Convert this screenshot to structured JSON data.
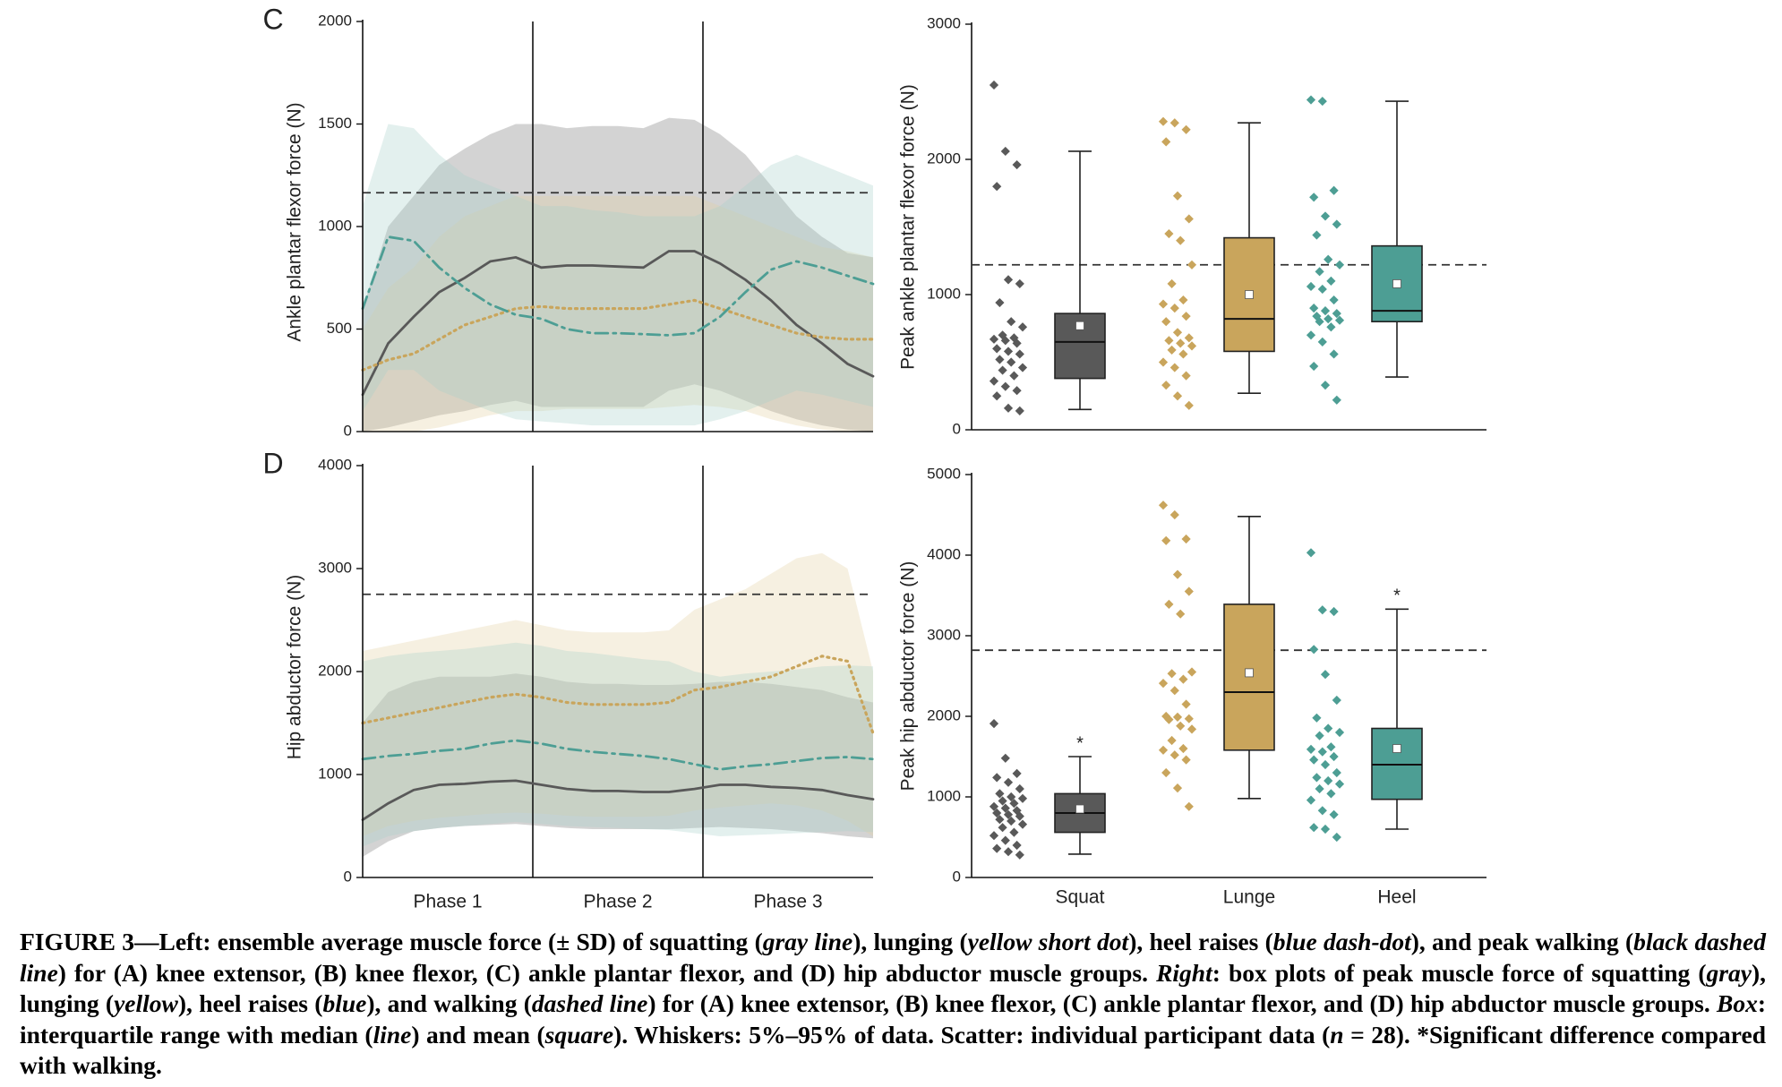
{
  "colors": {
    "squat": "#595959",
    "lunge": "#c9a55c",
    "heel": "#4d9e94",
    "walk": "#333333"
  },
  "panels": [
    {
      "letter": "C",
      "ylabel": "Ankle plantar flexor force (N)",
      "yticks": [
        "0",
        "500",
        "1000",
        "1500",
        "2000"
      ],
      "walk_peak": 1165
    },
    {
      "letter": "D",
      "ylabel": "Hip abductor force (N)",
      "yticks": [
        "0",
        "1000",
        "2000",
        "3000",
        "4000"
      ],
      "walk_peak": 2750
    }
  ],
  "phase_labels": [
    "Phase 1",
    "Phase 2",
    "Phase 3"
  ],
  "box_labels": [
    "Squat",
    "Lunge",
    "Heel"
  ],
  "chart_data": [
    {
      "type": "line",
      "title": "C",
      "ylabel": "Ankle plantar flexor force (N)",
      "ylim": [
        0,
        2000
      ],
      "x": [
        0,
        0.05,
        0.1,
        0.15,
        0.2,
        0.25,
        0.3,
        0.35,
        0.4,
        0.45,
        0.5,
        0.55,
        0.6,
        0.65,
        0.7,
        0.75,
        0.8,
        0.85,
        0.9,
        0.95,
        1.0
      ],
      "xlabel": "Phase 1 | Phase 2 | Phase 3",
      "reference_line": {
        "name": "Peak walking",
        "value": 1165
      },
      "series": [
        {
          "name": "Squat",
          "values": [
            180,
            430,
            560,
            680,
            750,
            830,
            850,
            800,
            810,
            810,
            805,
            800,
            880,
            880,
            820,
            740,
            640,
            520,
            430,
            330,
            270
          ],
          "sd_upper": [
            600,
            1000,
            1150,
            1300,
            1380,
            1450,
            1500,
            1500,
            1480,
            1490,
            1490,
            1480,
            1530,
            1520,
            1450,
            1350,
            1200,
            1050,
            950,
            870,
            850
          ],
          "sd_lower": [
            0,
            20,
            50,
            80,
            100,
            130,
            150,
            120,
            120,
            120,
            120,
            120,
            200,
            230,
            200,
            150,
            100,
            60,
            30,
            10,
            0
          ]
        },
        {
          "name": "Lunge",
          "values": [
            300,
            350,
            380,
            450,
            520,
            560,
            600,
            610,
            600,
            600,
            600,
            600,
            620,
            640,
            600,
            560,
            520,
            480,
            460,
            450,
            450
          ],
          "sd_upper": [
            500,
            700,
            800,
            950,
            1050,
            1100,
            1150,
            1150,
            1150,
            1150,
            1150,
            1150,
            1150,
            1150,
            1100,
            1050,
            1000,
            950,
            900,
            880,
            850
          ],
          "sd_lower": [
            0,
            0,
            0,
            20,
            50,
            80,
            100,
            100,
            110,
            110,
            110,
            110,
            120,
            130,
            120,
            100,
            60,
            30,
            10,
            0,
            0
          ]
        },
        {
          "name": "Heel",
          "values": [
            600,
            950,
            930,
            800,
            700,
            620,
            570,
            550,
            500,
            480,
            480,
            475,
            470,
            480,
            560,
            680,
            790,
            830,
            800,
            760,
            720
          ],
          "sd_upper": [
            1100,
            1500,
            1480,
            1350,
            1250,
            1200,
            1150,
            1100,
            1100,
            1080,
            1070,
            1050,
            1050,
            1050,
            1100,
            1200,
            1300,
            1350,
            1300,
            1250,
            1200
          ],
          "sd_lower": [
            100,
            300,
            300,
            200,
            150,
            100,
            60,
            50,
            40,
            30,
            30,
            30,
            30,
            30,
            60,
            100,
            150,
            200,
            180,
            150,
            120
          ]
        }
      ]
    },
    {
      "type": "line",
      "title": "D",
      "ylabel": "Hip abductor force (N)",
      "ylim": [
        0,
        4000
      ],
      "x": [
        0,
        0.05,
        0.1,
        0.15,
        0.2,
        0.25,
        0.3,
        0.35,
        0.4,
        0.45,
        0.5,
        0.55,
        0.6,
        0.65,
        0.7,
        0.75,
        0.8,
        0.85,
        0.9,
        0.95,
        1.0
      ],
      "xlabel": "Phase 1 | Phase 2 | Phase 3",
      "reference_line": {
        "name": "Peak walking",
        "value": 2750
      },
      "series": [
        {
          "name": "Squat",
          "values": [
            560,
            720,
            850,
            900,
            910,
            930,
            940,
            900,
            860,
            840,
            840,
            830,
            830,
            860,
            900,
            900,
            880,
            870,
            850,
            800,
            760
          ],
          "sd_upper": [
            1500,
            1800,
            1900,
            1950,
            1950,
            1950,
            1980,
            1950,
            1900,
            1880,
            1880,
            1870,
            1870,
            1880,
            1900,
            1900,
            1880,
            1850,
            1820,
            1750,
            1700
          ],
          "sd_lower": [
            200,
            350,
            450,
            480,
            500,
            510,
            520,
            500,
            480,
            470,
            470,
            470,
            470,
            480,
            490,
            480,
            470,
            450,
            430,
            400,
            380
          ]
        },
        {
          "name": "Lunge",
          "values": [
            1500,
            1550,
            1600,
            1650,
            1700,
            1750,
            1780,
            1750,
            1700,
            1680,
            1680,
            1680,
            1700,
            1820,
            1850,
            1900,
            1950,
            2050,
            2150,
            2100,
            1400
          ],
          "sd_upper": [
            2200,
            2250,
            2300,
            2350,
            2400,
            2450,
            2500,
            2450,
            2400,
            2380,
            2380,
            2380,
            2400,
            2600,
            2700,
            2800,
            2950,
            3100,
            3150,
            3000,
            2000
          ],
          "sd_lower": [
            400,
            500,
            550,
            580,
            600,
            620,
            630,
            620,
            600,
            590,
            590,
            590,
            600,
            650,
            680,
            700,
            720,
            700,
            650,
            550,
            400
          ]
        },
        {
          "name": "Heel",
          "values": [
            1150,
            1180,
            1200,
            1230,
            1250,
            1300,
            1330,
            1300,
            1250,
            1220,
            1200,
            1180,
            1150,
            1100,
            1050,
            1080,
            1100,
            1130,
            1160,
            1170,
            1150
          ],
          "sd_upper": [
            2100,
            2150,
            2180,
            2200,
            2220,
            2250,
            2280,
            2250,
            2200,
            2180,
            2150,
            2120,
            2100,
            2000,
            1950,
            1980,
            2000,
            2020,
            2050,
            2060,
            2050
          ],
          "sd_lower": [
            300,
            400,
            450,
            480,
            500,
            520,
            540,
            520,
            500,
            490,
            480,
            470,
            460,
            430,
            400,
            410,
            420,
            430,
            440,
            450,
            440
          ]
        }
      ]
    },
    {
      "type": "box",
      "ylabel": "Peak ankle plantar flexor force (N)",
      "ylim": [
        0,
        3000
      ],
      "yticks": [
        "0",
        "1000",
        "2000",
        "3000"
      ],
      "categories": [
        "Squat",
        "Lunge",
        "Heel"
      ],
      "reference_line": {
        "name": "Peak walking",
        "value": 1220
      },
      "boxes": [
        {
          "name": "Squat",
          "whisker_low": 150,
          "q1": 380,
          "median": 650,
          "q3": 860,
          "whisker_high": 2060,
          "mean": 770,
          "significant": false,
          "points": [
            2550,
            2060,
            1960,
            1800,
            1110,
            1080,
            940,
            800,
            760,
            700,
            680,
            670,
            660,
            640,
            600,
            580,
            560,
            520,
            500,
            460,
            440,
            400,
            360,
            320,
            290,
            250,
            160,
            140
          ]
        },
        {
          "name": "Lunge",
          "whisker_low": 270,
          "q1": 580,
          "median": 820,
          "q3": 1420,
          "whisker_high": 2270,
          "mean": 1000,
          "significant": false,
          "points": [
            2280,
            2270,
            2220,
            2130,
            1730,
            1560,
            1450,
            1400,
            1220,
            1080,
            960,
            930,
            900,
            840,
            800,
            720,
            680,
            660,
            640,
            620,
            590,
            560,
            500,
            460,
            400,
            330,
            250,
            180
          ]
        },
        {
          "name": "Heel",
          "whisker_low": 390,
          "q1": 800,
          "median": 880,
          "q3": 1360,
          "whisker_high": 2430,
          "mean": 1080,
          "significant": false,
          "points": [
            2440,
            2430,
            1770,
            1720,
            1580,
            1520,
            1440,
            1260,
            1220,
            1170,
            1100,
            1060,
            1040,
            960,
            900,
            880,
            860,
            840,
            820,
            810,
            800,
            760,
            700,
            650,
            560,
            470,
            330,
            220
          ]
        }
      ]
    },
    {
      "type": "box",
      "ylabel": "Peak hip abductor force (N)",
      "ylim": [
        0,
        5000
      ],
      "yticks": [
        "0",
        "1000",
        "2000",
        "3000",
        "4000",
        "5000"
      ],
      "categories": [
        "Squat",
        "Lunge",
        "Heel"
      ],
      "reference_line": {
        "name": "Peak walking",
        "value": 2820
      },
      "boxes": [
        {
          "name": "Squat",
          "whisker_low": 290,
          "q1": 560,
          "median": 800,
          "q3": 1040,
          "whisker_high": 1500,
          "mean": 850,
          "significant": true,
          "points": [
            1910,
            1480,
            1290,
            1240,
            1180,
            1100,
            1040,
            1000,
            980,
            950,
            920,
            880,
            860,
            830,
            800,
            780,
            760,
            720,
            700,
            660,
            620,
            560,
            520,
            460,
            400,
            360,
            320,
            280
          ]
        },
        {
          "name": "Lunge",
          "whisker_low": 980,
          "q1": 1580,
          "median": 2300,
          "q3": 3390,
          "whisker_high": 4480,
          "mean": 2540,
          "significant": false,
          "points": [
            4620,
            4500,
            4200,
            4180,
            3760,
            3550,
            3390,
            3270,
            2550,
            2530,
            2460,
            2410,
            2320,
            2150,
            2000,
            1990,
            1970,
            1960,
            1880,
            1840,
            1700,
            1600,
            1580,
            1520,
            1460,
            1300,
            1110,
            880
          ]
        },
        {
          "name": "Heel",
          "whisker_low": 600,
          "q1": 970,
          "median": 1400,
          "q3": 1850,
          "whisker_high": 3330,
          "mean": 1600,
          "significant": true,
          "points": [
            4030,
            3320,
            3300,
            2830,
            2520,
            2200,
            1980,
            1850,
            1800,
            1760,
            1620,
            1590,
            1560,
            1500,
            1460,
            1400,
            1300,
            1240,
            1200,
            1160,
            1100,
            1040,
            960,
            830,
            780,
            620,
            600,
            500
          ]
        }
      ]
    }
  ],
  "caption": {
    "p1": "FIGURE 3—Left: ensemble average muscle force (± SD) of squatting (",
    "i1": "gray line",
    "p2": "), lunging (",
    "i2": "yellow short dot",
    "p3": "), heel raises (",
    "i3": "blue dash-dot",
    "p4": "), and peak walking (",
    "i4": "black dashed line",
    "p5": ") for (A) knee extensor, (B) knee flexor, (C) ankle plantar flexor, and (D) hip abductor muscle groups. ",
    "i5": "Right",
    "p6": ": box plots of peak muscle force of squatting (",
    "i6": "gray",
    "p7": "), lunging (",
    "i7": "yellow",
    "p8": "), heel raises (",
    "i8": "blue",
    "p9": "), and walking (",
    "i9": "dashed line",
    "p10": ") for (A) knee extensor, (B) knee flexor, (C) ankle plantar flexor, and (D) hip abductor muscle groups. ",
    "i10": "Box",
    "p11": ": interquartile range with median (",
    "i11": "line",
    "p12": ") and mean (",
    "i12": "square",
    "p13": "). Whiskers: 5%–95% of data. Scatter: individual participant data (",
    "i13": "n",
    "p14": " = 28). *Significant difference compared with walking."
  }
}
